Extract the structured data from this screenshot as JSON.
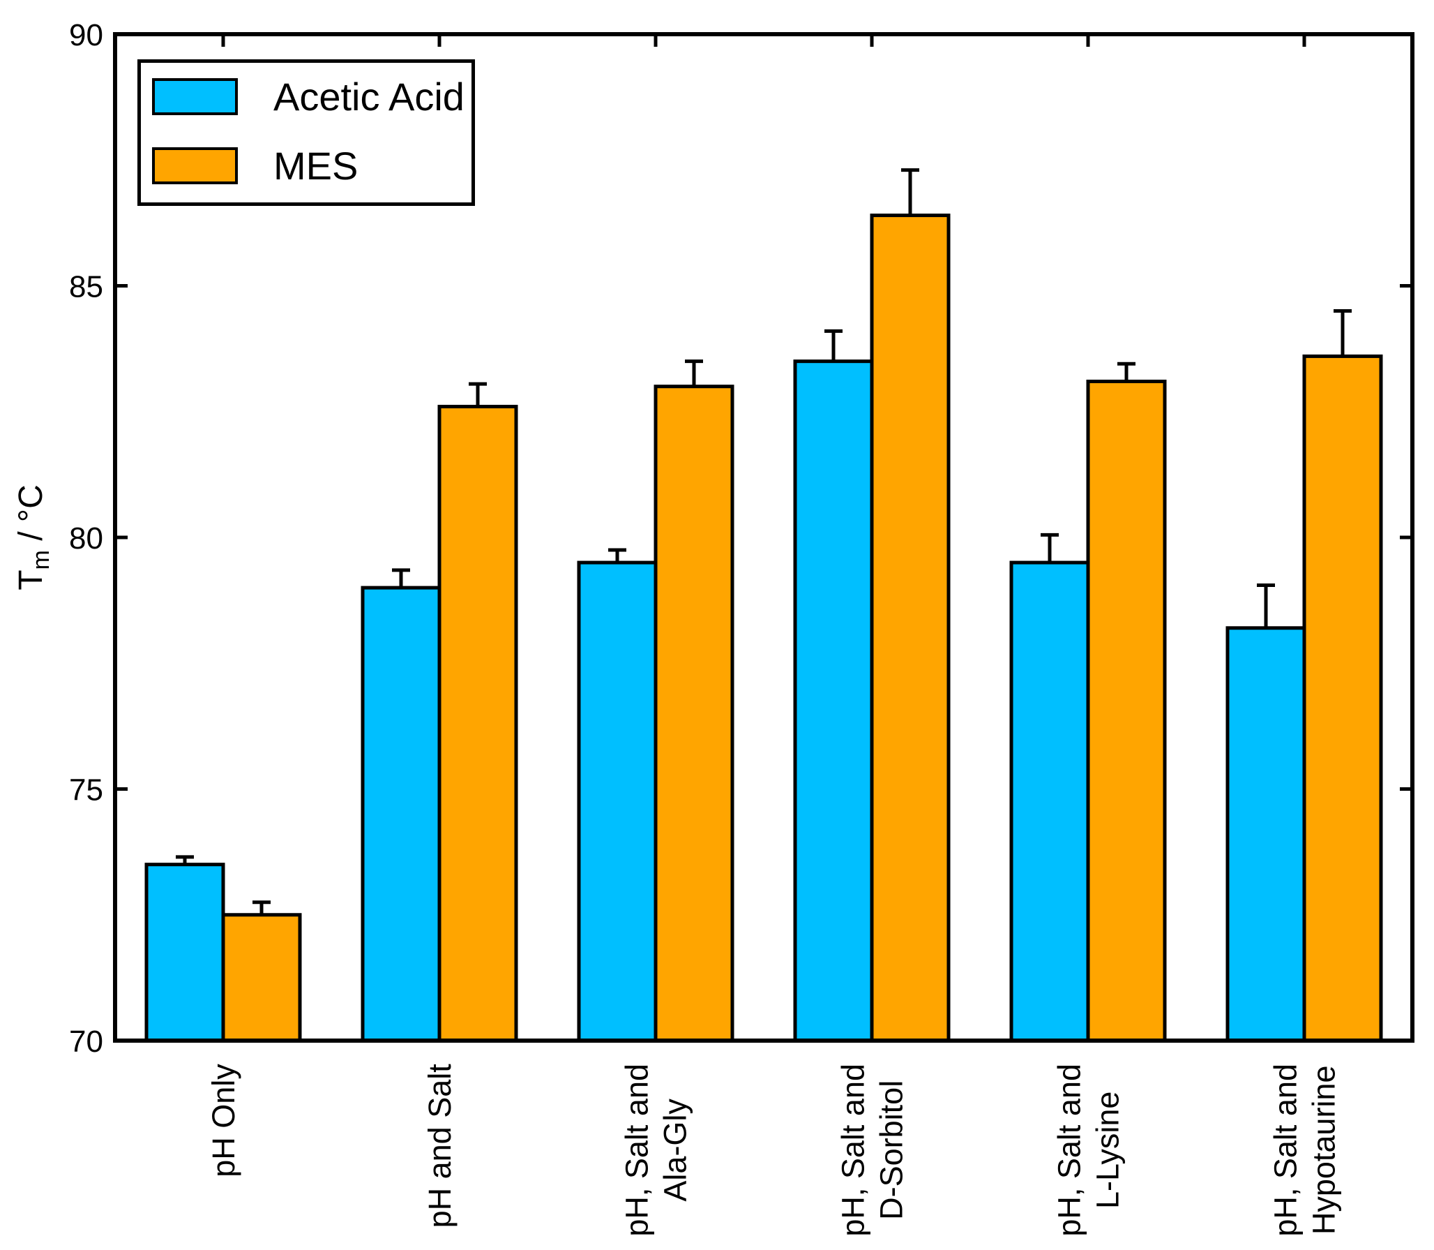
{
  "legend": {
    "position": "upper left",
    "items": [
      {
        "label": "Acetic Acid",
        "color": "#00BFFF"
      },
      {
        "label": "MES",
        "color": "#FFA500"
      }
    ]
  },
  "chart_data": {
    "type": "bar",
    "title": "",
    "xlabel": "",
    "ylabel": "Tm / °C",
    "ylabel_parts": {
      "base": "T",
      "sub": "m",
      "rest": " / °C"
    },
    "ylim": [
      70,
      90
    ],
    "yticks": [
      70,
      75,
      80,
      85,
      90
    ],
    "grid": false,
    "legend_position": "upper left",
    "bar_edge_color": "#000000",
    "error_bar_color": "#000000",
    "categories": [
      "pH Only",
      "pH and Salt",
      "pH, Salt and\nAla-Gly",
      "pH, Salt and\nD-Sorbitol",
      "pH, Salt and\nL-Lysine",
      "pH, Salt and\nHypotaurine"
    ],
    "series": [
      {
        "name": "Acetic Acid",
        "color": "#00BFFF",
        "values": [
          73.5,
          79.0,
          79.5,
          83.5,
          79.5,
          78.2
        ],
        "errors": [
          0.15,
          0.35,
          0.25,
          0.6,
          0.55,
          0.85
        ]
      },
      {
        "name": "MES",
        "color": "#FFA500",
        "values": [
          72.5,
          82.6,
          83.0,
          86.4,
          83.1,
          83.6
        ],
        "errors": [
          0.25,
          0.45,
          0.5,
          0.9,
          0.35,
          0.9
        ]
      }
    ]
  }
}
